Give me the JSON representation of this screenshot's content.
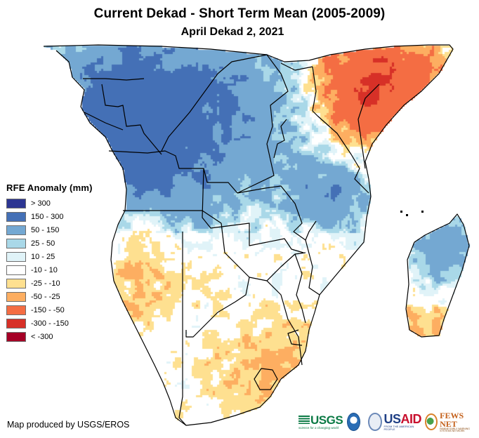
{
  "header": {
    "title": "Current Dekad - Short Term Mean (2005-2009)",
    "subtitle": "April Dekad 2, 2021"
  },
  "legend": {
    "title": "RFE Anomaly (mm)",
    "classes": [
      {
        "label": "> 300",
        "color": "#2c3592"
      },
      {
        "label": "150 - 300",
        "color": "#4470b6"
      },
      {
        "label": "50 - 150",
        "color": "#74a8d2"
      },
      {
        "label": "25 - 50",
        "color": "#a9d8e8"
      },
      {
        "label": "10 - 25",
        "color": "#e0f3f8"
      },
      {
        "label": "-10 - 10",
        "color": "#ffffff"
      },
      {
        "label": "-25 - -10",
        "color": "#fee090"
      },
      {
        "label": "-50 - -25",
        "color": "#fdae61"
      },
      {
        "label": "-150 - -50",
        "color": "#f46d43"
      },
      {
        "label": "-300 - -150",
        "color": "#d73027"
      },
      {
        "label": "< -300",
        "color": "#a50026"
      }
    ]
  },
  "map": {
    "region": "Central, Eastern and Southern Africa and Madagascar",
    "variable": "Rainfall estimate (RFE) anomaly",
    "units": "mm",
    "boundary_color": "#000000"
  },
  "footer": {
    "credit": "Map produced by USGS/EROS",
    "logos": {
      "usgs": "USGS",
      "usgs_tagline": "science for a changing world",
      "noaa": "NOAA",
      "usaid_us": "US",
      "usaid_aid": "AID",
      "usaid_tagline": "FROM THE AMERICAN PEOPLE",
      "fews": "FEWS NET",
      "fews_tagline": "FAMINE EARLY WARNING SYSTEMS NETWORK"
    }
  }
}
